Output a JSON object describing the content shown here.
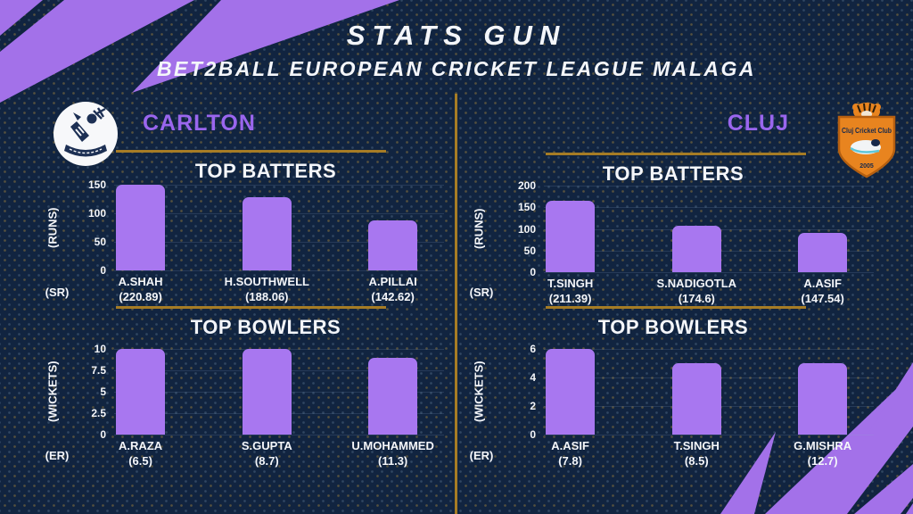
{
  "header": {
    "title": "STATS GUN",
    "subtitle": "BET2BALL EUROPEAN CRICKET LEAGUE MALAGA"
  },
  "teams": [
    {
      "name": "CARLTON"
    },
    {
      "name": "CLUJ"
    }
  ],
  "logos": {
    "carlton": {
      "description": "white circular crest with dark emblem"
    },
    "cluj": {
      "club_name": "Cluj Cricket Club",
      "year": "2005"
    }
  },
  "colors": {
    "background_navy": "#112440",
    "bar_purple": "#a877f0",
    "decor_purple": "#a371e9",
    "team_purple": "#9a66ee",
    "gold_line": "#a67c25",
    "text_white": "#f4f6fa",
    "cluj_shield_orange": "#e8841f"
  },
  "chart_data": [
    {
      "type": "bar",
      "team": "CARLTON",
      "title": "TOP BATTERS",
      "ylabel": "(RUNS)",
      "xlabel": "(SR)",
      "ylim": [
        0,
        150
      ],
      "yticks": [
        0,
        50,
        100,
        150
      ],
      "grid": true,
      "categories": [
        "A.SHAH",
        "H.SOUTHWELL",
        "A.PILLAI"
      ],
      "x_sub_labels": [
        "(220.89)",
        "(188.06)",
        "(142.62)"
      ],
      "values": [
        150,
        128,
        87
      ]
    },
    {
      "type": "bar",
      "team": "CARLTON",
      "title": "TOP BOWLERS",
      "ylabel": "(WICKETS)",
      "xlabel": "(ER)",
      "ylim": [
        0,
        10
      ],
      "yticks": [
        0,
        2.5,
        5,
        7.5,
        10
      ],
      "grid": true,
      "categories": [
        "A.RAZA",
        "S.GUPTA",
        "U.MOHAMMED"
      ],
      "x_sub_labels": [
        "(6.5)",
        "(8.7)",
        "(11.3)"
      ],
      "values": [
        10,
        10,
        9
      ]
    },
    {
      "type": "bar",
      "team": "CLUJ",
      "title": "TOP BATTERS",
      "ylabel": "(RUNS)",
      "xlabel": "(SR)",
      "ylim": [
        0,
        200
      ],
      "yticks": [
        0,
        50,
        100,
        150,
        200
      ],
      "grid": true,
      "categories": [
        "T.SINGH",
        "S.NADIGOTLA",
        "A.ASIF"
      ],
      "x_sub_labels": [
        "(211.39)",
        "(174.6)",
        "(147.54)"
      ],
      "values": [
        166,
        108,
        90
      ]
    },
    {
      "type": "bar",
      "team": "CLUJ",
      "title": "TOP BOWLERS",
      "ylabel": "(WICKETS)",
      "xlabel": "(ER)",
      "ylim": [
        0,
        6
      ],
      "yticks": [
        0,
        2,
        4,
        6
      ],
      "grid": true,
      "categories": [
        "A.ASIF",
        "T.SINGH",
        "G.MISHRA"
      ],
      "x_sub_labels": [
        "(7.8)",
        "(8.5)",
        "(12.7)"
      ],
      "values": [
        6,
        5,
        5
      ]
    }
  ]
}
